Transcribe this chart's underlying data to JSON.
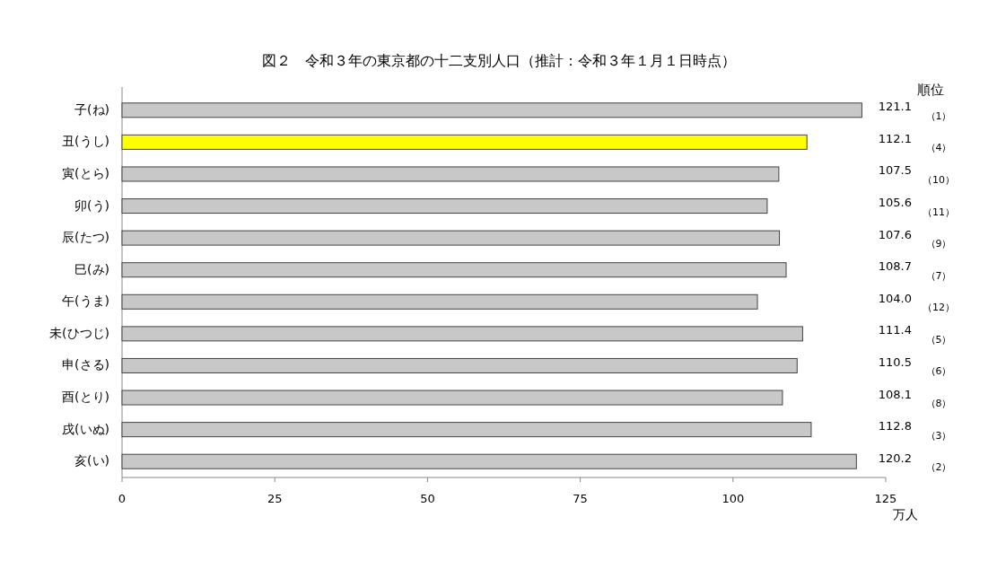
{
  "chart_data": {
    "type": "bar",
    "orientation": "horizontal",
    "title": "図２　令和３年の東京都の十二支別人口（推計：令和３年１月１日時点）",
    "xlabel": "万人",
    "categories": [
      "子(ね)",
      "丑(うし)",
      "寅(とら)",
      "卯(う)",
      "辰(たつ)",
      "巳(み)",
      "午(うま)",
      "未(ひつじ)",
      "申(さる)",
      "酉(とり)",
      "戌(いぬ)",
      "亥(い)"
    ],
    "values": [
      121.1,
      112.1,
      107.5,
      105.6,
      107.6,
      108.7,
      104.0,
      111.4,
      110.5,
      108.1,
      112.8,
      120.2
    ],
    "value_labels": [
      "121.1",
      "112.1",
      "107.5",
      "105.6",
      "107.6",
      "108.7",
      "104.0",
      "111.4",
      "110.5",
      "108.1",
      "112.8",
      "120.2"
    ],
    "colors": [
      "#c8c8c8",
      "#ffff00",
      "#c8c8c8",
      "#c8c8c8",
      "#c8c8c8",
      "#c8c8c8",
      "#c8c8c8",
      "#c8c8c8",
      "#c8c8c8",
      "#c8c8c8",
      "#c8c8c8",
      "#c8c8c8"
    ],
    "xlim": [
      0,
      125
    ],
    "xticks": [
      0,
      25,
      50,
      75,
      100,
      125
    ],
    "annotations": [
      "順位",
      "（1）",
      "（4）",
      "（10）",
      "（11）",
      "（9）",
      "（7）",
      "（12）",
      "（5）",
      "（6）",
      "（8）",
      "（3）",
      "（2）"
    ]
  }
}
